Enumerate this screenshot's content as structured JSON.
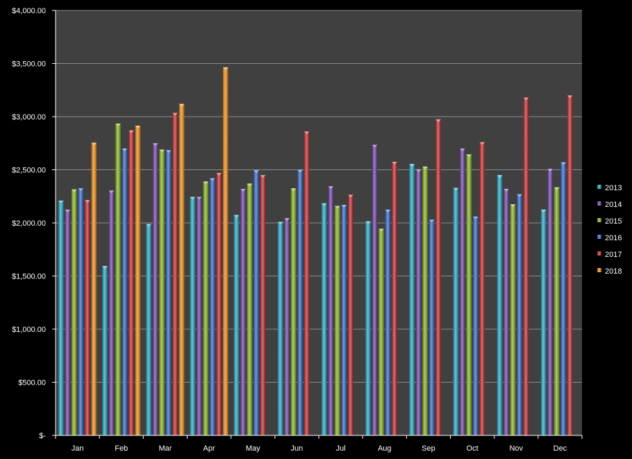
{
  "chart_data": {
    "type": "bar",
    "title": "",
    "xlabel": "",
    "ylabel": "",
    "categories": [
      "Jan",
      "Feb",
      "Mar",
      "Apr",
      "May",
      "Jun",
      "Jul",
      "Aug",
      "Sep",
      "Oct",
      "Nov",
      "Dec"
    ],
    "ylim": [
      0,
      4000
    ],
    "y_ticks": [
      0,
      500,
      1000,
      1500,
      2000,
      2500,
      3000,
      3500,
      4000
    ],
    "y_tick_labels": [
      "$-",
      "$500.00",
      "$1,000.00",
      "$1,500.00",
      "$2,000.00",
      "$2,500.00",
      "$3,000.00",
      "$3,500.00",
      "$4,000.00"
    ],
    "grid": "horizontal",
    "legend_position": "right",
    "background_color": "#404040",
    "series": [
      {
        "name": "2013",
        "color": "#1fa4c0",
        "values": [
          2210,
          1595,
          1990,
          2245,
          2075,
          2010,
          2185,
          2015,
          2555,
          2330,
          2450,
          2125
        ]
      },
      {
        "name": "2014",
        "color": "#6b3fa0",
        "values": [
          2125,
          2305,
          2750,
          2245,
          2320,
          2045,
          2345,
          2735,
          2505,
          2700,
          2320,
          2510
        ]
      },
      {
        "name": "2015",
        "color": "#84b31a",
        "values": [
          2315,
          2935,
          2690,
          2390,
          2370,
          2325,
          2160,
          1945,
          2530,
          2645,
          2175,
          2335
        ]
      },
      {
        "name": "2016",
        "color": "#2e63c6",
        "values": [
          2325,
          2700,
          2685,
          2420,
          2495,
          2500,
          2170,
          2125,
          2030,
          2060,
          2270,
          2570
        ]
      },
      {
        "name": "2017",
        "color": "#c0262b",
        "values": [
          2215,
          2870,
          3035,
          2470,
          2450,
          2860,
          2265,
          2575,
          2975,
          2760,
          3180,
          3200
        ]
      },
      {
        "name": "2018",
        "color": "#f08a10",
        "values": [
          2755,
          2915,
          3120,
          3465,
          null,
          null,
          null,
          null,
          null,
          null,
          null,
          null
        ]
      }
    ]
  }
}
